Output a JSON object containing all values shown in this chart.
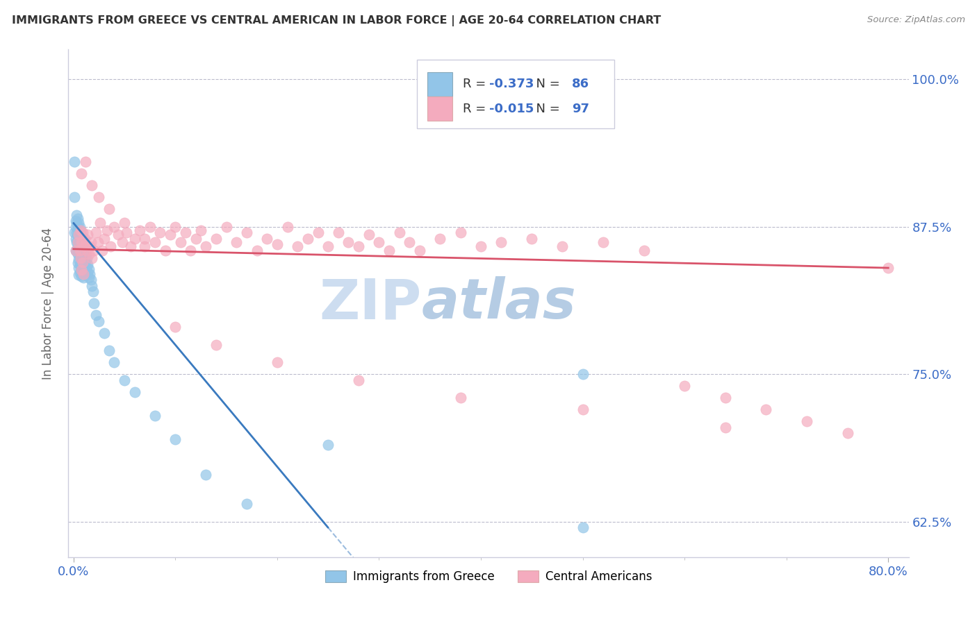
{
  "title": "IMMIGRANTS FROM GREECE VS CENTRAL AMERICAN IN LABOR FORCE | AGE 20-64 CORRELATION CHART",
  "source": "Source: ZipAtlas.com",
  "ylabel": "In Labor Force | Age 20-64",
  "xlim": [
    -0.005,
    0.82
  ],
  "ylim": [
    0.595,
    1.025
  ],
  "ytick_vals": [
    0.625,
    0.75,
    0.875,
    1.0
  ],
  "ytick_labels": [
    "62.5%",
    "75.0%",
    "87.5%",
    "100.0%"
  ],
  "xtick_vals": [
    0.0,
    0.8
  ],
  "xtick_labels": [
    "0.0%",
    "80.0%"
  ],
  "R_greece": -0.373,
  "N_greece": 86,
  "R_central": -0.015,
  "N_central": 97,
  "color_greece": "#92C5E8",
  "color_central": "#F4ABBE",
  "trendline_greece": "#3A7ABF",
  "trendline_central": "#D9536A",
  "watermark_zip": "ZIP",
  "watermark_atlas": "atlas",
  "watermark_color_zip": "#BFD4EE",
  "watermark_color_atlas": "#9FBEDD",
  "background_color": "#FFFFFF",
  "greece_x": [
    0.001,
    0.001,
    0.001,
    0.002,
    0.002,
    0.002,
    0.002,
    0.003,
    0.003,
    0.003,
    0.003,
    0.003,
    0.004,
    0.004,
    0.004,
    0.004,
    0.004,
    0.004,
    0.005,
    0.005,
    0.005,
    0.005,
    0.005,
    0.005,
    0.005,
    0.005,
    0.006,
    0.006,
    0.006,
    0.006,
    0.006,
    0.006,
    0.006,
    0.007,
    0.007,
    0.007,
    0.007,
    0.007,
    0.007,
    0.008,
    0.008,
    0.008,
    0.008,
    0.008,
    0.008,
    0.009,
    0.009,
    0.009,
    0.009,
    0.009,
    0.01,
    0.01,
    0.01,
    0.01,
    0.01,
    0.011,
    0.011,
    0.011,
    0.012,
    0.012,
    0.012,
    0.013,
    0.013,
    0.014,
    0.014,
    0.015,
    0.015,
    0.016,
    0.017,
    0.018,
    0.019,
    0.02,
    0.022,
    0.025,
    0.03,
    0.035,
    0.04,
    0.05,
    0.06,
    0.08,
    0.1,
    0.13,
    0.17,
    0.25,
    0.5,
    0.5
  ],
  "greece_y": [
    0.93,
    0.9,
    0.87,
    0.88,
    0.875,
    0.865,
    0.855,
    0.885,
    0.878,
    0.87,
    0.862,
    0.854,
    0.882,
    0.875,
    0.868,
    0.86,
    0.852,
    0.844,
    0.878,
    0.872,
    0.866,
    0.86,
    0.853,
    0.847,
    0.84,
    0.834,
    0.875,
    0.869,
    0.863,
    0.857,
    0.85,
    0.843,
    0.836,
    0.872,
    0.865,
    0.858,
    0.851,
    0.844,
    0.837,
    0.868,
    0.861,
    0.854,
    0.847,
    0.84,
    0.833,
    0.864,
    0.857,
    0.85,
    0.843,
    0.836,
    0.86,
    0.853,
    0.846,
    0.839,
    0.832,
    0.856,
    0.849,
    0.842,
    0.852,
    0.845,
    0.838,
    0.848,
    0.841,
    0.843,
    0.836,
    0.839,
    0.832,
    0.835,
    0.83,
    0.825,
    0.82,
    0.81,
    0.8,
    0.795,
    0.785,
    0.77,
    0.76,
    0.745,
    0.735,
    0.715,
    0.695,
    0.665,
    0.64,
    0.69,
    0.75,
    0.62
  ],
  "central_x": [
    0.002,
    0.004,
    0.005,
    0.006,
    0.007,
    0.007,
    0.008,
    0.008,
    0.009,
    0.009,
    0.01,
    0.01,
    0.011,
    0.012,
    0.013,
    0.014,
    0.015,
    0.016,
    0.017,
    0.018,
    0.02,
    0.022,
    0.024,
    0.026,
    0.028,
    0.03,
    0.033,
    0.036,
    0.04,
    0.044,
    0.048,
    0.052,
    0.056,
    0.06,
    0.065,
    0.07,
    0.075,
    0.08,
    0.085,
    0.09,
    0.095,
    0.1,
    0.105,
    0.11,
    0.115,
    0.12,
    0.125,
    0.13,
    0.14,
    0.15,
    0.16,
    0.17,
    0.18,
    0.19,
    0.2,
    0.21,
    0.22,
    0.23,
    0.24,
    0.25,
    0.26,
    0.27,
    0.28,
    0.29,
    0.3,
    0.31,
    0.32,
    0.33,
    0.34,
    0.36,
    0.38,
    0.4,
    0.42,
    0.45,
    0.48,
    0.52,
    0.56,
    0.6,
    0.64,
    0.68,
    0.72,
    0.76,
    0.008,
    0.012,
    0.018,
    0.025,
    0.035,
    0.05,
    0.07,
    0.1,
    0.14,
    0.2,
    0.28,
    0.38,
    0.5,
    0.64,
    0.8
  ],
  "central_y": [
    0.855,
    0.862,
    0.868,
    0.855,
    0.872,
    0.848,
    0.862,
    0.838,
    0.87,
    0.845,
    0.858,
    0.835,
    0.865,
    0.86,
    0.855,
    0.868,
    0.852,
    0.858,
    0.862,
    0.848,
    0.855,
    0.87,
    0.862,
    0.878,
    0.855,
    0.865,
    0.872,
    0.858,
    0.875,
    0.868,
    0.862,
    0.87,
    0.858,
    0.865,
    0.872,
    0.858,
    0.875,
    0.862,
    0.87,
    0.855,
    0.868,
    0.875,
    0.862,
    0.87,
    0.855,
    0.865,
    0.872,
    0.858,
    0.865,
    0.875,
    0.862,
    0.87,
    0.855,
    0.865,
    0.86,
    0.875,
    0.858,
    0.865,
    0.87,
    0.858,
    0.87,
    0.862,
    0.858,
    0.868,
    0.862,
    0.855,
    0.87,
    0.862,
    0.855,
    0.865,
    0.87,
    0.858,
    0.862,
    0.865,
    0.858,
    0.862,
    0.855,
    0.74,
    0.73,
    0.72,
    0.71,
    0.7,
    0.92,
    0.93,
    0.91,
    0.9,
    0.89,
    0.878,
    0.865,
    0.79,
    0.775,
    0.76,
    0.745,
    0.73,
    0.72,
    0.705,
    0.84
  ]
}
